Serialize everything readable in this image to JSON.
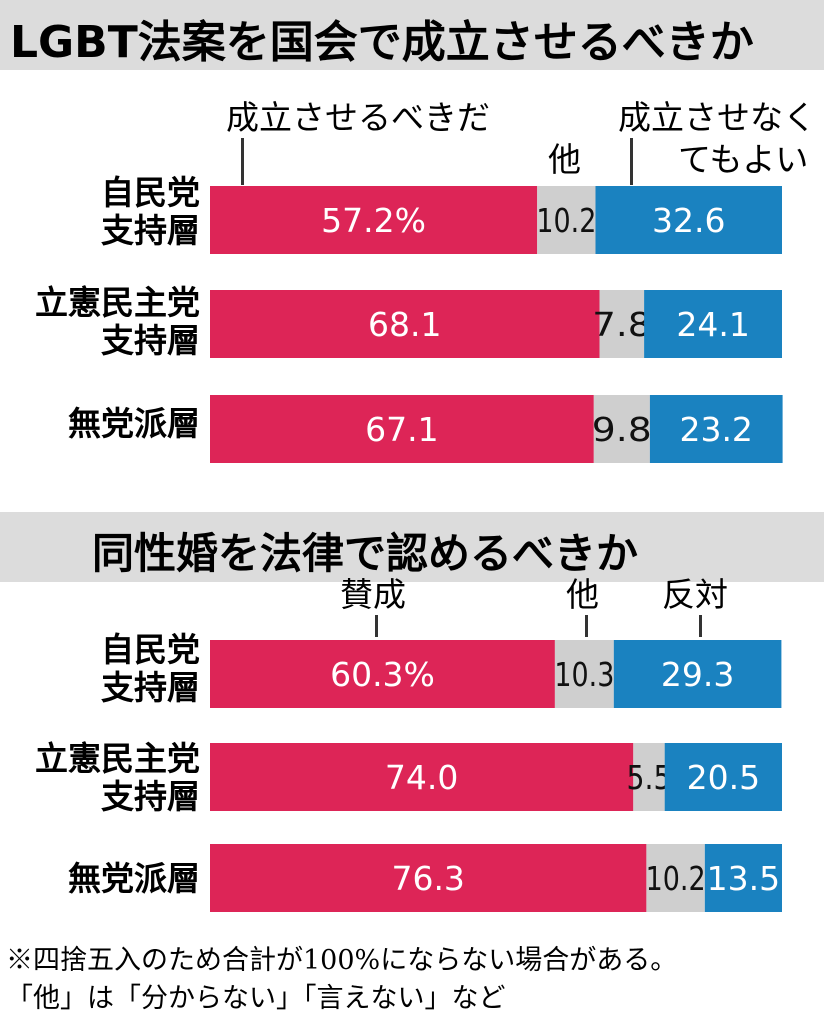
{
  "chart_data": [
    {
      "type": "bar",
      "stacked": true,
      "orientation": "horizontal",
      "title": "LGBT法案を国会で成立させるべきか",
      "categories": [
        [
          "自民党",
          "支持層"
        ],
        [
          "立憲民主党",
          "支持層"
        ],
        [
          "無党派層"
        ]
      ],
      "series": [
        {
          "name": "成立させるべきだ",
          "values": [
            57.2,
            68.1,
            67.1
          ],
          "labels": [
            "57.2%",
            "68.1",
            "67.1"
          ],
          "color": "#dd2557"
        },
        {
          "name": "他",
          "values": [
            10.2,
            7.8,
            9.8
          ],
          "labels": [
            "10.2",
            "7.8",
            "9.8"
          ],
          "color": "#cfcfcf"
        },
        {
          "name": "成立させなくてもよい",
          "name_lines": [
            "成立させなく",
            "てもよい"
          ],
          "values": [
            32.6,
            24.1,
            23.2
          ],
          "labels": [
            "32.6",
            "24.1",
            "23.2"
          ],
          "color": "#1a82c0"
        }
      ],
      "xlim": [
        0,
        100
      ]
    },
    {
      "type": "bar",
      "stacked": true,
      "orientation": "horizontal",
      "title": "同性婚を法律で認めるべきか",
      "categories": [
        [
          "自民党",
          "支持層"
        ],
        [
          "立憲民主党",
          "支持層"
        ],
        [
          "無党派層"
        ]
      ],
      "series": [
        {
          "name": "賛成",
          "values": [
            60.3,
            74.0,
            76.3
          ],
          "labels": [
            "60.3%",
            "74.0",
            "76.3"
          ],
          "color": "#dd2557"
        },
        {
          "name": "他",
          "values": [
            10.3,
            5.5,
            10.2
          ],
          "labels": [
            "10.3",
            "5.5",
            "10.2"
          ],
          "color": "#cfcfcf"
        },
        {
          "name": "反対",
          "values": [
            29.3,
            20.5,
            13.5
          ],
          "labels": [
            "29.3",
            "20.5",
            "13.5"
          ],
          "color": "#1a82c0"
        }
      ],
      "xlim": [
        0,
        100
      ]
    }
  ],
  "notes": [
    "※四捨五入のため合計が100%にならない場合がある。",
    "「他」は「分からない」「言えない」など"
  ]
}
